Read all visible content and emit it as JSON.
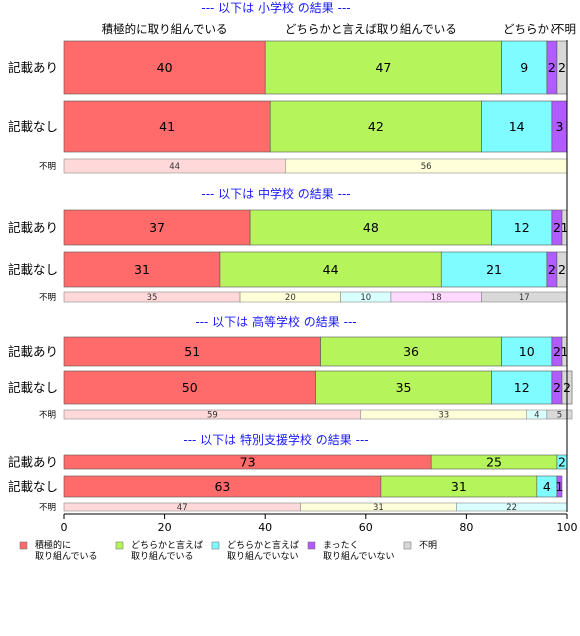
{
  "chart_data": {
    "type": "bar",
    "orientation": "horizontal",
    "stacked": true,
    "xlim": [
      0,
      100
    ],
    "xticks": [
      "0",
      "20",
      "40",
      "60",
      "80",
      "100"
    ],
    "legend": {
      "placement": "bottom",
      "items": [
        {
          "label": "積極的に\n取り組んでいる",
          "color": "#ff6b6b"
        },
        {
          "label": "どちらかと言えば\n取り組んでいる",
          "color": "#b5f55b"
        },
        {
          "label": "どちらかと言えば\n取り組んでいない",
          "color": "#7ffcff"
        },
        {
          "label": "まったく\n取り組んでいない",
          "color": "#b05cff"
        },
        {
          "label": "不明",
          "color": "#d8d8d8"
        }
      ]
    },
    "top_headers": [
      "積極的に取り組んでいる",
      "どちらかと言えば取り組んでいる",
      "どちらかと言えば取り組んでいない",
      "不明"
    ],
    "unknown_colors": [
      "#ffd9d9",
      "#ffffd9",
      "#d9ffff",
      "#ffd9ff",
      "#d9d9d9"
    ],
    "sections": [
      {
        "title": "--- 以下は 小学校 の結果 ---",
        "rows": [
          {
            "label": "記載あり",
            "values": [
              40,
              47,
              9,
              2,
              2
            ]
          },
          {
            "label": "記載なし",
            "values": [
              41,
              42,
              14,
              3,
              0
            ]
          }
        ],
        "unknown": {
          "label": "不明",
          "values": [
            44,
            56,
            0,
            0,
            0
          ]
        }
      },
      {
        "title": "--- 以下は 中学校 の結果 ---",
        "rows": [
          {
            "label": "記載あり",
            "values": [
              37,
              48,
              12,
              2,
              1
            ]
          },
          {
            "label": "記載なし",
            "values": [
              31,
              44,
              21,
              2,
              2
            ]
          }
        ],
        "unknown": {
          "label": "不明",
          "values": [
            35,
            20,
            10,
            18,
            17
          ]
        }
      },
      {
        "title": "--- 以下は 高等学校 の結果 ---",
        "rows": [
          {
            "label": "記載あり",
            "values": [
              51,
              36,
              10,
              2,
              1
            ]
          },
          {
            "label": "記載なし",
            "values": [
              50,
              35,
              12,
              2,
              2
            ]
          }
        ],
        "unknown": {
          "label": "不明",
          "values": [
            59,
            33,
            4,
            0,
            5
          ]
        }
      },
      {
        "title": "--- 以下は 特別支援学校 の結果 ---",
        "rows": [
          {
            "label": "記載あり",
            "values": [
              73,
              25,
              2,
              0,
              0
            ]
          },
          {
            "label": "記載なし",
            "values": [
              63,
              31,
              4,
              1,
              0
            ]
          }
        ],
        "unknown": {
          "label": "不明",
          "values": [
            47,
            31,
            22,
            0,
            0
          ]
        }
      }
    ]
  }
}
